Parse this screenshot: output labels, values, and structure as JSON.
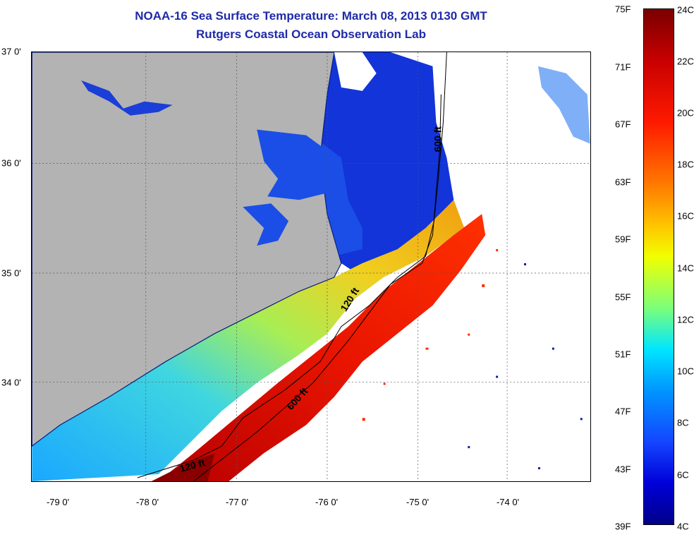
{
  "title": "NOAA-16 Sea Surface Temperature:  March 08, 2013 0130 GMT",
  "subtitle": "Rutgers Coastal Ocean Observation Lab",
  "x_ticks": [
    "-79 0'",
    "-78 0'",
    "-77 0'",
    "-76 0'",
    "-75 0'",
    "-74 0'"
  ],
  "y_ticks": [
    "37 0'",
    "36 0'",
    "35 0'",
    "34 0'"
  ],
  "colorbar_f": [
    "75F",
    "71F",
    "67F",
    "63F",
    "59F",
    "55F",
    "51F",
    "47F",
    "43F",
    "39F"
  ],
  "colorbar_c": [
    "24C",
    "22C",
    "20C",
    "18C",
    "16C",
    "14C",
    "12C",
    "10C",
    "8C",
    "6C",
    "4C"
  ],
  "contour_labels": [
    "600 ft",
    "120 ft",
    "600 ft",
    "120 ft"
  ],
  "colors": {
    "land": "#b3b3b3",
    "title": "#1f2aa8"
  }
}
